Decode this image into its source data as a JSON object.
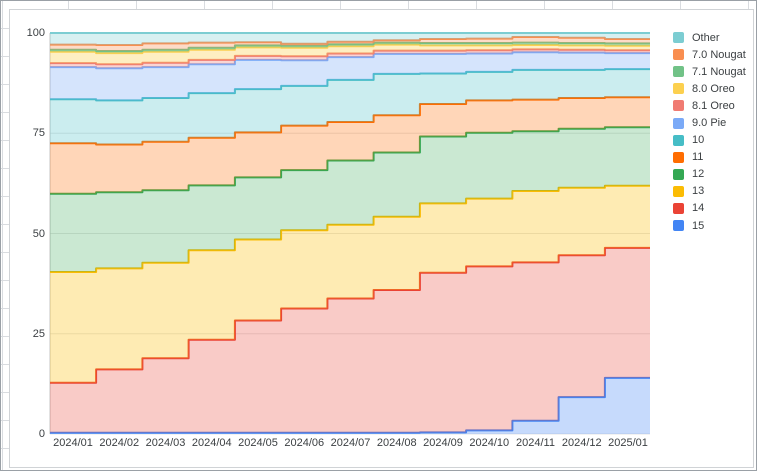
{
  "window": {
    "background": "#ffffff",
    "card_border": "#d0d3d6"
  },
  "chart_data": {
    "type": "area",
    "variant": "stacked-step-area",
    "stacked": true,
    "title": "",
    "xlabel": "",
    "ylabel": "",
    "ylim": [
      0,
      100
    ],
    "yticks": [
      0,
      25,
      50,
      75,
      100
    ],
    "grid": true,
    "grid_color": "#e6e6e6",
    "axis_line_color": "#c6c6c6",
    "axis_text_color": "#3c4043",
    "legend_position": "right",
    "x": [
      "2024/01",
      "2024/02",
      "2024/03",
      "2024/04",
      "2024/05",
      "2024/06",
      "2024/07",
      "2024/08",
      "2024/09",
      "2024/10",
      "2024/11",
      "2024/12",
      "2025/01"
    ],
    "series": [
      {
        "name": "15",
        "color": "#4285F4",
        "fill": "rgba(66,133,244,0.30)",
        "values": [
          0.3,
          0.3,
          0.3,
          0.3,
          0.3,
          0.3,
          0.3,
          0.3,
          0.4,
          0.9,
          3.3,
          9.2,
          14.0
        ]
      },
      {
        "name": "14",
        "color": "#EA4335",
        "fill": "rgba(234,67,53,0.28)",
        "values": [
          12.5,
          15.8,
          18.6,
          23.2,
          28.0,
          31.0,
          33.5,
          35.6,
          39.8,
          40.9,
          39.5,
          35.4,
          32.4
        ]
      },
      {
        "name": "13",
        "color": "#FBBC04",
        "fill": "rgba(251,188,4,0.30)",
        "values": [
          27.6,
          25.2,
          23.8,
          22.3,
          20.2,
          19.5,
          18.4,
          18.3,
          17.3,
          16.9,
          17.8,
          16.8,
          15.5
        ]
      },
      {
        "name": "12",
        "color": "#34A853",
        "fill": "rgba(52,168,83,0.26)",
        "values": [
          19.5,
          19.0,
          18.1,
          16.2,
          15.5,
          15.0,
          16.0,
          16.0,
          16.7,
          16.4,
          14.9,
          14.7,
          14.6
        ]
      },
      {
        "name": "11",
        "color": "#FF6D01",
        "fill": "rgba(255,109,1,0.28)",
        "values": [
          12.6,
          11.9,
          12.1,
          11.9,
          11.2,
          11.1,
          9.6,
          9.3,
          8.1,
          8.1,
          7.9,
          7.7,
          7.5
        ]
      },
      {
        "name": "10",
        "color": "#46BDC6",
        "fill": "rgba(70,189,198,0.28)",
        "values": [
          11.0,
          11.0,
          10.9,
          11.1,
          10.8,
          9.9,
          10.5,
          10.3,
          7.6,
          7.1,
          7.4,
          7.0,
          7.0
        ]
      },
      {
        "name": "9.0 Pie",
        "color": "#7BAAF7",
        "fill": "rgba(123,170,247,0.32)",
        "values": [
          8.0,
          8.0,
          7.7,
          7.2,
          7.3,
          6.4,
          5.7,
          5.0,
          4.9,
          4.6,
          4.4,
          4.3,
          4.0
        ]
      },
      {
        "name": "8.1 Oreo",
        "color": "#F07B72",
        "fill": "rgba(240,123,114,0.32)",
        "values": [
          1.0,
          1.0,
          1.1,
          1.1,
          1.0,
          1.0,
          0.9,
          0.8,
          0.8,
          0.8,
          0.7,
          0.7,
          0.7
        ]
      },
      {
        "name": "8.0 Oreo",
        "color": "#FCD04F",
        "fill": "rgba(252,208,79,0.35)",
        "values": [
          2.8,
          2.8,
          2.7,
          2.5,
          2.1,
          2.1,
          1.8,
          1.5,
          1.3,
          1.2,
          1.1,
          1.1,
          1.1
        ]
      },
      {
        "name": "7.1 Nougat",
        "color": "#71C287",
        "fill": "rgba(113,194,135,0.35)",
        "values": [
          0.5,
          0.5,
          0.5,
          0.5,
          0.5,
          0.5,
          0.5,
          0.5,
          0.6,
          0.6,
          0.6,
          0.6,
          0.6
        ]
      },
      {
        "name": "7.0 Nougat",
        "color": "#F98E50",
        "fill": "rgba(249,142,80,0.32)",
        "values": [
          1.3,
          1.5,
          1.6,
          1.3,
          0.8,
          0.5,
          0.6,
          0.6,
          1.0,
          1.1,
          1.4,
          1.3,
          1.1
        ]
      },
      {
        "name": "Other",
        "color": "#7CCDD2",
        "fill": "rgba(124,205,210,0.30)",
        "values": [
          2.9,
          3.0,
          2.6,
          2.4,
          2.3,
          2.7,
          2.2,
          1.8,
          1.5,
          1.4,
          1.0,
          1.2,
          1.5
        ]
      }
    ],
    "legend_entries": [
      "Other",
      "7.0 Nougat",
      "7.1 Nougat",
      "8.0 Oreo",
      "8.1 Oreo",
      "9.0 Pie",
      "10",
      "11",
      "12",
      "13",
      "14",
      "15"
    ]
  },
  "axes": {
    "y_tick_labels": [
      "100",
      "75",
      "50",
      "25",
      "0"
    ],
    "x_tick_labels": [
      "2024/01",
      "2024/02",
      "2024/03",
      "2024/04",
      "2024/05",
      "2024/06",
      "2024/07",
      "2024/08",
      "2024/09",
      "2024/10",
      "2024/11",
      "2024/12",
      "2025/01"
    ]
  }
}
